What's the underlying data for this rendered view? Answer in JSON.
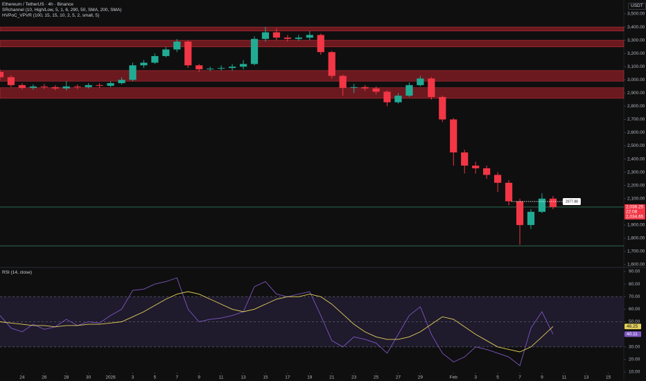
{
  "header": {
    "title": "Ethereum / TetherUS · 4h · Binance",
    "indicators": [
      "SRchannel (10, High/Low, 5, 1, 6, 290, 50, SMA, 200, SMA)",
      "HVPoC_VPVR (100, 15, 15, 10, 2, 5, 2, small, 5)"
    ],
    "currency": "USDT"
  },
  "chart_data": [
    {
      "type": "candlestick",
      "x": [
        -10,
        -9,
        -8,
        -7,
        -6,
        -5,
        -4,
        -3,
        -2,
        -1,
        0,
        1,
        2,
        3,
        4,
        5,
        6,
        7,
        8,
        9,
        10,
        11,
        12,
        13,
        14,
        15,
        16,
        17,
        18,
        19,
        20,
        21,
        22,
        23,
        24,
        25,
        26,
        27,
        28,
        29,
        30,
        31,
        32,
        33,
        34,
        35,
        36,
        37,
        38,
        39,
        40
      ],
      "open": [
        3060,
        3020,
        2960,
        2940,
        2950,
        2945,
        2935,
        2950,
        2945,
        2960,
        2955,
        2975,
        3000,
        3110,
        3130,
        3180,
        3230,
        3290,
        3110,
        3080,
        3085,
        3090,
        3100,
        3120,
        3310,
        3360,
        3320,
        3310,
        3320,
        3340,
        3210,
        3030,
        2940,
        2945,
        2935,
        2910,
        2830,
        2880,
        2960,
        3010,
        2870,
        2700,
        2450,
        2350,
        2330,
        2280,
        2220,
        2080,
        1900,
        2000,
        2100
      ],
      "high": [
        3080,
        3035,
        2975,
        2965,
        2970,
        2960,
        2990,
        2965,
        2975,
        2975,
        2990,
        3020,
        3130,
        3150,
        3200,
        3250,
        3310,
        3300,
        3120,
        3100,
        3110,
        3120,
        3150,
        3330,
        3400,
        3390,
        3340,
        3340,
        3370,
        3350,
        3220,
        3040,
        2970,
        2960,
        2950,
        2920,
        2900,
        2980,
        3030,
        3020,
        2880,
        2710,
        2470,
        2380,
        2350,
        2300,
        2240,
        2100,
        2020,
        2140,
        2120
      ],
      "low": [
        3000,
        2945,
        2925,
        2925,
        2930,
        2920,
        2920,
        2930,
        2935,
        2940,
        2945,
        2965,
        2990,
        3090,
        3120,
        3170,
        3210,
        3090,
        3060,
        3065,
        3070,
        3070,
        3080,
        3110,
        3290,
        3300,
        3290,
        3295,
        3300,
        3190,
        3010,
        2880,
        2900,
        2915,
        2890,
        2800,
        2820,
        2870,
        2950,
        2850,
        2680,
        2350,
        2290,
        2290,
        2250,
        2150,
        2050,
        1750,
        1870,
        1990,
        2020
      ],
      "close": [
        3020,
        2960,
        2940,
        2950,
        2945,
        2935,
        2950,
        2945,
        2960,
        2955,
        2975,
        3000,
        3110,
        3130,
        3180,
        3230,
        3290,
        3110,
        3080,
        3085,
        3090,
        3100,
        3120,
        3310,
        3360,
        3320,
        3310,
        3320,
        3340,
        3210,
        3030,
        2940,
        2945,
        2935,
        2910,
        2830,
        2880,
        2960,
        3010,
        2870,
        2700,
        2450,
        2350,
        2330,
        2280,
        2220,
        2080,
        1900,
        2000,
        2100,
        2036.25
      ],
      "up_color": "#22ab94",
      "down_color": "#f23645",
      "xlim": [
        -10,
        46.4
      ],
      "ylim": [
        1600,
        3500
      ],
      "yticks": [
        {
          "value": 1600,
          "label": "1,600.00"
        },
        {
          "value": 1700,
          "label": "1,700.00"
        },
        {
          "value": 1800,
          "label": "1,800.00"
        },
        {
          "value": 1900,
          "label": "1,900.00"
        },
        {
          "value": 2000,
          "label": "2,000.00"
        },
        {
          "value": 2100,
          "label": "2,100.00"
        },
        {
          "value": 2200,
          "label": "2,200.00"
        },
        {
          "value": 2300,
          "label": "2,300.00"
        },
        {
          "value": 2400,
          "label": "2,400.00"
        },
        {
          "value": 2500,
          "label": "2,500.00"
        },
        {
          "value": 2600,
          "label": "2,600.00"
        },
        {
          "value": 2700,
          "label": "2,700.00"
        },
        {
          "value": 2800,
          "label": "2,800.00"
        },
        {
          "value": 2900,
          "label": "2,900.00"
        },
        {
          "value": 3000,
          "label": "3,000.00"
        },
        {
          "value": 3100,
          "label": "3,100.00"
        },
        {
          "value": 3200,
          "label": "3,200.00"
        },
        {
          "value": 3300,
          "label": "3,300.00"
        },
        {
          "value": 3400,
          "label": "3,400.00"
        },
        {
          "value": 3500,
          "label": "3,500.00"
        }
      ],
      "zones": [
        [
          3370,
          3400
        ],
        [
          3250,
          3300
        ],
        [
          2990,
          3070
        ],
        [
          2860,
          2940
        ]
      ],
      "zone_color": "#8b1e26",
      "lines": [
        2036,
        1742
      ],
      "line_color": "#2e6b52",
      "price_line": {
        "value": 2077.88,
        "label": "2077.88"
      },
      "last_price": {
        "value": 2036.25,
        "label": "2,036.25",
        "countdown": "22:08"
      },
      "second_price": {
        "value": 2034.65,
        "label": "2,034.65"
      }
    },
    {
      "type": "line",
      "title": "RSI (14, close)",
      "series": [
        {
          "color": "#7e57c2",
          "values": [
            55,
            45,
            42,
            48,
            44,
            46,
            52,
            47,
            50,
            49,
            55,
            60,
            75,
            76,
            80,
            82,
            85,
            60,
            50,
            52,
            53,
            55,
            58,
            78,
            82,
            72,
            70,
            72,
            74,
            55,
            35,
            30,
            38,
            36,
            33,
            25,
            40,
            55,
            62,
            40,
            25,
            18,
            22,
            30,
            28,
            25,
            22,
            15,
            45,
            58,
            40.11
          ]
        },
        {
          "color": "#e6d25a",
          "values": [
            50,
            49,
            48,
            47,
            47,
            46,
            47,
            47,
            48,
            48,
            49,
            50,
            54,
            58,
            63,
            68,
            72,
            74,
            72,
            68,
            64,
            60,
            58,
            60,
            64,
            68,
            70,
            70,
            72,
            70,
            64,
            56,
            48,
            42,
            38,
            36,
            36,
            38,
            42,
            48,
            54,
            52,
            46,
            40,
            35,
            30,
            28,
            26,
            30,
            38,
            46.25
          ]
        }
      ],
      "ylim": [
        10,
        90
      ],
      "yticks": [
        {
          "value": 10,
          "label": "10.00"
        },
        {
          "value": 20,
          "label": "20.00"
        },
        {
          "value": 30,
          "label": "30.00"
        },
        {
          "value": 40,
          "label": "40.00"
        },
        {
          "value": 50,
          "label": "50.00"
        },
        {
          "value": 60,
          "label": "60.00"
        },
        {
          "value": 70,
          "label": "70.00"
        },
        {
          "value": 80,
          "label": "80.00"
        },
        {
          "value": 90,
          "label": "90.00"
        }
      ],
      "levels": [
        70,
        50,
        30
      ],
      "band_color": "#2a2240",
      "xticks": [
        {
          "value": -8,
          "label": "24"
        },
        {
          "value": -6,
          "label": "26"
        },
        {
          "value": -4,
          "label": "28"
        },
        {
          "value": -2,
          "label": "30"
        },
        {
          "value": 0,
          "label": "2026"
        },
        {
          "value": 2,
          "label": "3"
        },
        {
          "value": 4,
          "label": "5"
        },
        {
          "value": 6,
          "label": "7"
        },
        {
          "value": 8,
          "label": "9"
        },
        {
          "value": 10,
          "label": "11"
        },
        {
          "value": 12,
          "label": "13"
        },
        {
          "value": 14,
          "label": "15"
        },
        {
          "value": 16,
          "label": "17"
        },
        {
          "value": 18,
          "label": "19"
        },
        {
          "value": 20,
          "label": "21"
        },
        {
          "value": 22,
          "label": "23"
        },
        {
          "value": 24,
          "label": "25"
        },
        {
          "value": 26,
          "label": "27"
        },
        {
          "value": 28,
          "label": "29"
        },
        {
          "value": 31,
          "label": "Feb"
        },
        {
          "value": 33,
          "label": "3"
        },
        {
          "value": 35,
          "label": "5"
        },
        {
          "value": 37,
          "label": "7"
        },
        {
          "value": 39,
          "label": "9"
        },
        {
          "value": 41,
          "label": "11"
        },
        {
          "value": 43,
          "label": "13"
        },
        {
          "value": 45,
          "label": "15"
        }
      ]
    }
  ]
}
